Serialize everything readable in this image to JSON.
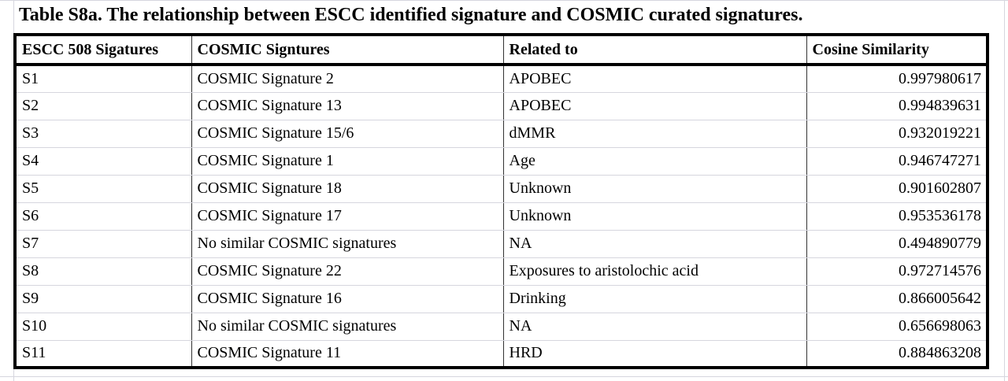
{
  "header": {
    "title": "Table S8a. The relationship between ESCC identified signature and COSMIC curated signatures."
  },
  "table": {
    "columns": [
      "ESCC 508 Sigatures",
      "COSMIC Signtures",
      "Related to",
      "Cosine Similarity"
    ],
    "rows": [
      [
        "S1",
        "COSMIC Signature 2",
        "APOBEC",
        0.997980617
      ],
      [
        "S2",
        "COSMIC Signature 13",
        "APOBEC",
        0.994839631
      ],
      [
        "S3",
        "COSMIC Signature 15/6",
        "dMMR",
        0.932019221
      ],
      [
        "S4",
        "COSMIC Signature 1",
        "Age",
        0.946747271
      ],
      [
        "S5",
        "COSMIC Signature 18",
        "Unknown",
        0.901602807
      ],
      [
        "S6",
        "COSMIC Signature 17",
        "Unknown",
        0.953536178
      ],
      [
        "S7",
        "No similar COSMIC signatures",
        "NA",
        0.494890779
      ],
      [
        "S8",
        "COSMIC Signature 22",
        "Exposures to aristolochic acid",
        0.972714576
      ],
      [
        "S9",
        "COSMIC Signature 16",
        "Drinking",
        0.866005642
      ],
      [
        "S10",
        "No similar COSMIC signatures",
        "NA",
        0.656698063
      ],
      [
        "S11",
        "COSMIC Signature 11",
        "HRD",
        0.884863208
      ]
    ]
  }
}
